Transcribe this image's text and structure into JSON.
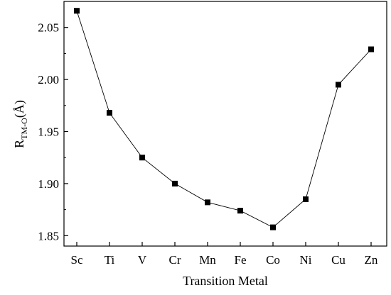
{
  "chart_data": {
    "type": "line",
    "title": "",
    "xlabel": "Transition Metal",
    "ylabel": {
      "main": "R",
      "subscript": "TM-O",
      "suffix": "(Å)"
    },
    "categories": [
      "Sc",
      "Ti",
      "V",
      "Cr",
      "Mn",
      "Fe",
      "Co",
      "Ni",
      "Cu",
      "Zn"
    ],
    "series": [
      {
        "values": [
          2.066,
          1.968,
          1.925,
          1.9,
          1.882,
          1.874,
          1.858,
          1.885,
          1.995,
          2.029
        ],
        "color": "#000000",
        "marker": "square"
      }
    ],
    "ylim": [
      1.84,
      2.075
    ],
    "yticks": [
      1.85,
      1.9,
      1.95,
      2.0,
      2.05
    ],
    "ytick_labels": [
      "1.85",
      "1.90",
      "1.95",
      "2.00",
      "2.05"
    ],
    "grid": false,
    "legend": "none"
  }
}
